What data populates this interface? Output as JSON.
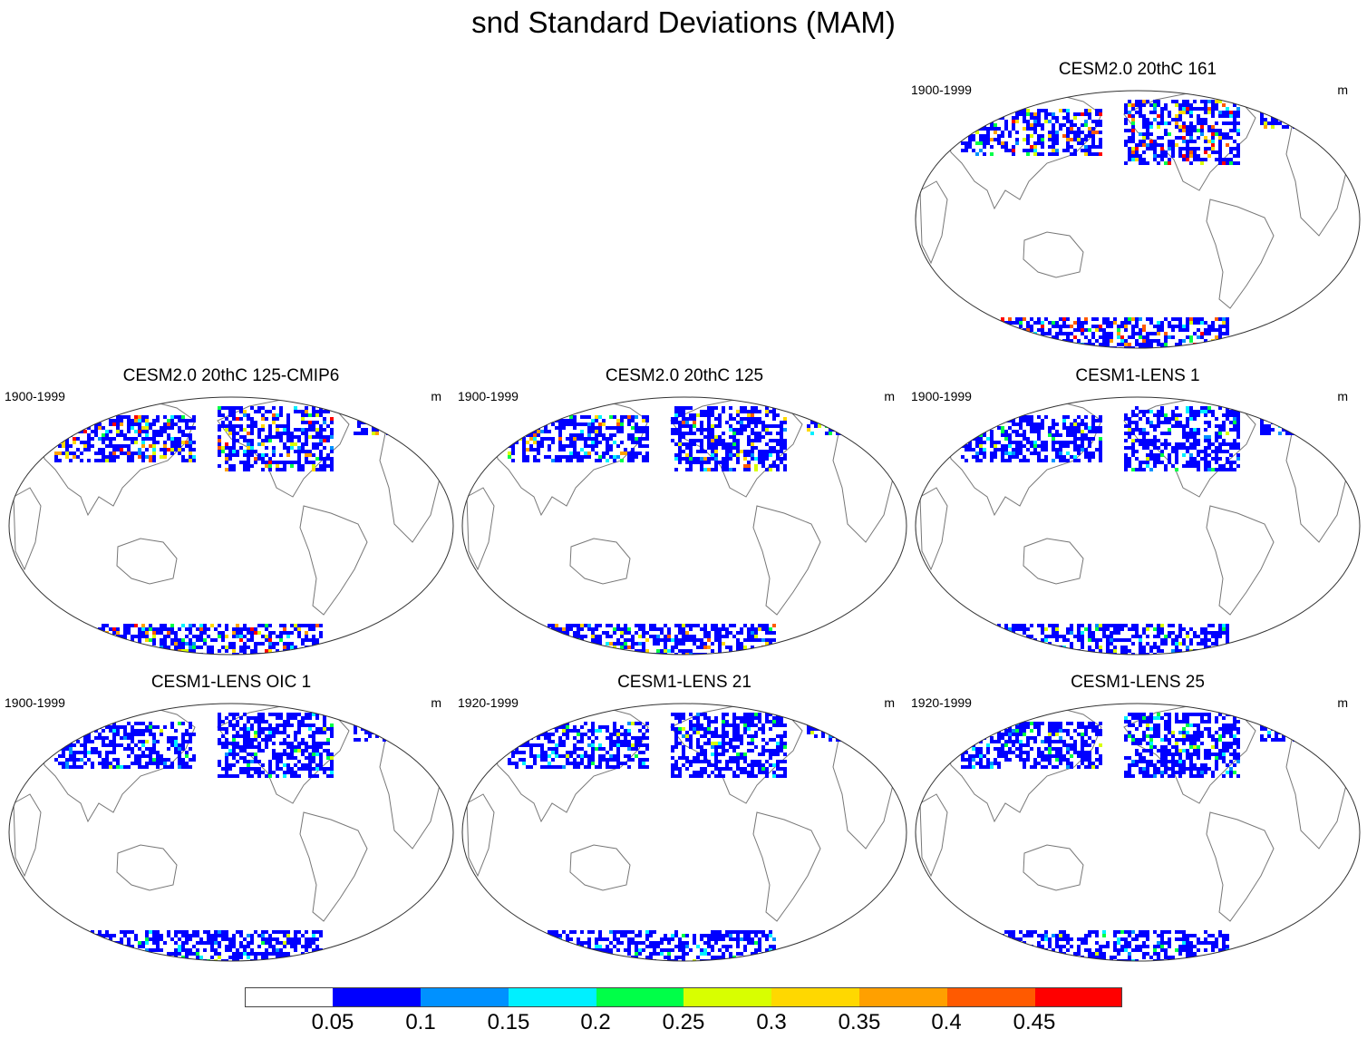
{
  "title": "snd Standard Deviations (MAM)",
  "panels": [
    {
      "title": "CESM2.0 20thC 161",
      "period": "1900-1999",
      "units": "m",
      "intensity": 1.0
    },
    {
      "title": "CESM2.0 20thC 125-CMIP6",
      "period": "1900-1999",
      "units": "m",
      "intensity": 1.0
    },
    {
      "title": "CESM2.0 20thC 125",
      "period": "1900-1999",
      "units": "m",
      "intensity": 0.85
    },
    {
      "title": "CESM1-LENS 1",
      "period": "1900-1999",
      "units": "m",
      "intensity": 0.45
    },
    {
      "title": "CESM1-LENS OIC 1",
      "period": "1900-1999",
      "units": "m",
      "intensity": 0.45
    },
    {
      "title": "CESM1-LENS 21",
      "period": "1920-1999",
      "units": "m",
      "intensity": 0.45
    },
    {
      "title": "CESM1-LENS 25",
      "period": "1920-1999",
      "units": "m",
      "intensity": 0.45
    }
  ],
  "colorbar": {
    "colors": [
      "#ffffff",
      "#0000ff",
      "#0091ff",
      "#00f0ff",
      "#00ff48",
      "#d8ff00",
      "#ffd800",
      "#ffa000",
      "#ff5a00",
      "#ff0000"
    ],
    "labels": [
      "0.05",
      "0.1",
      "0.15",
      "0.2",
      "0.25",
      "0.3",
      "0.35",
      "0.4",
      "0.45"
    ]
  }
}
